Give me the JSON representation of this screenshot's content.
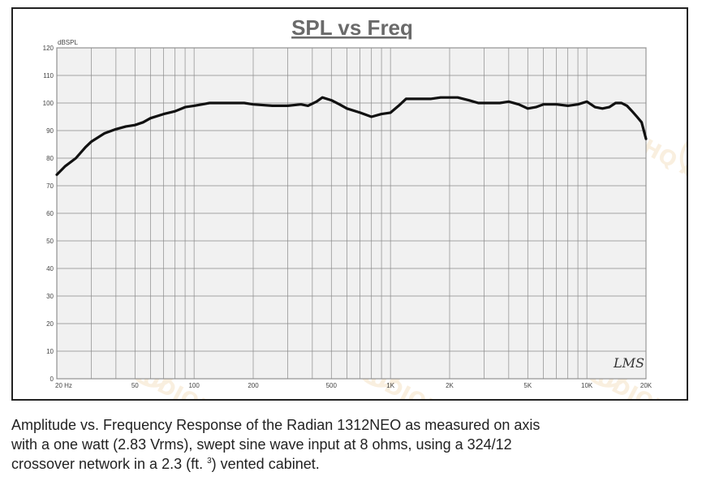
{
  "chart_data": {
    "type": "line",
    "title": "SPL vs Freq",
    "ylabel": "dBSPL",
    "xlabel": "",
    "x_scale": "log",
    "xlim": [
      20,
      20000
    ],
    "ylim": [
      0,
      120
    ],
    "grid": true,
    "y_ticks": [
      0,
      10,
      20,
      30,
      40,
      50,
      60,
      70,
      80,
      90,
      100,
      110,
      120
    ],
    "x_tick_labels": [
      {
        "value": 20,
        "label": "20  Hz"
      },
      {
        "value": 50,
        "label": "50"
      },
      {
        "value": 100,
        "label": "100"
      },
      {
        "value": 200,
        "label": "200"
      },
      {
        "value": 500,
        "label": "500"
      },
      {
        "value": 1000,
        "label": "1K"
      },
      {
        "value": 2000,
        "label": "2K"
      },
      {
        "value": 5000,
        "label": "5K"
      },
      {
        "value": 10000,
        "label": "10K"
      },
      {
        "value": 20000,
        "label": "20K"
      }
    ],
    "signature": "LMS",
    "watermark": "HQ AUDIOPARTS",
    "series": [
      {
        "color": "#111111",
        "x": [
          20,
          22,
          25,
          28,
          30,
          35,
          40,
          45,
          50,
          55,
          60,
          70,
          80,
          90,
          100,
          120,
          150,
          180,
          200,
          250,
          300,
          350,
          380,
          420,
          450,
          500,
          550,
          600,
          700,
          800,
          900,
          1000,
          1100,
          1200,
          1400,
          1600,
          1800,
          2000,
          2200,
          2500,
          2800,
          3200,
          3600,
          4000,
          4500,
          5000,
          5500,
          6000,
          7000,
          8000,
          9000,
          10000,
          11000,
          12000,
          13000,
          14000,
          15000,
          16000,
          17000,
          18000,
          19000,
          20000
        ],
        "y": [
          74,
          77,
          80,
          84,
          86,
          89,
          90.5,
          91.5,
          92,
          93,
          94.5,
          96,
          97,
          98.5,
          99,
          100,
          100,
          100,
          99.5,
          99,
          99,
          99.5,
          99,
          100.5,
          102,
          101,
          99.5,
          98,
          96.5,
          95,
          96,
          96.5,
          99,
          101.5,
          101.5,
          101.5,
          102,
          102,
          102,
          101,
          100,
          100,
          100,
          100.5,
          99.5,
          98,
          98.5,
          99.5,
          99.5,
          99,
          99.5,
          100.5,
          98.5,
          98,
          98.5,
          100,
          100,
          99,
          97,
          95,
          93,
          87
        ]
      }
    ]
  },
  "caption": {
    "line1": "Amplitude vs. Frequency Response of the Radian 1312NEO as measured on axis",
    "line2": "with a one watt (2.83 Vrms), swept sine wave input at 8 ohms, using a 324/12",
    "line3a": "crossover network in a 2.3 (ft. ",
    "sup": "3",
    "line3b": ") vented cabinet."
  }
}
